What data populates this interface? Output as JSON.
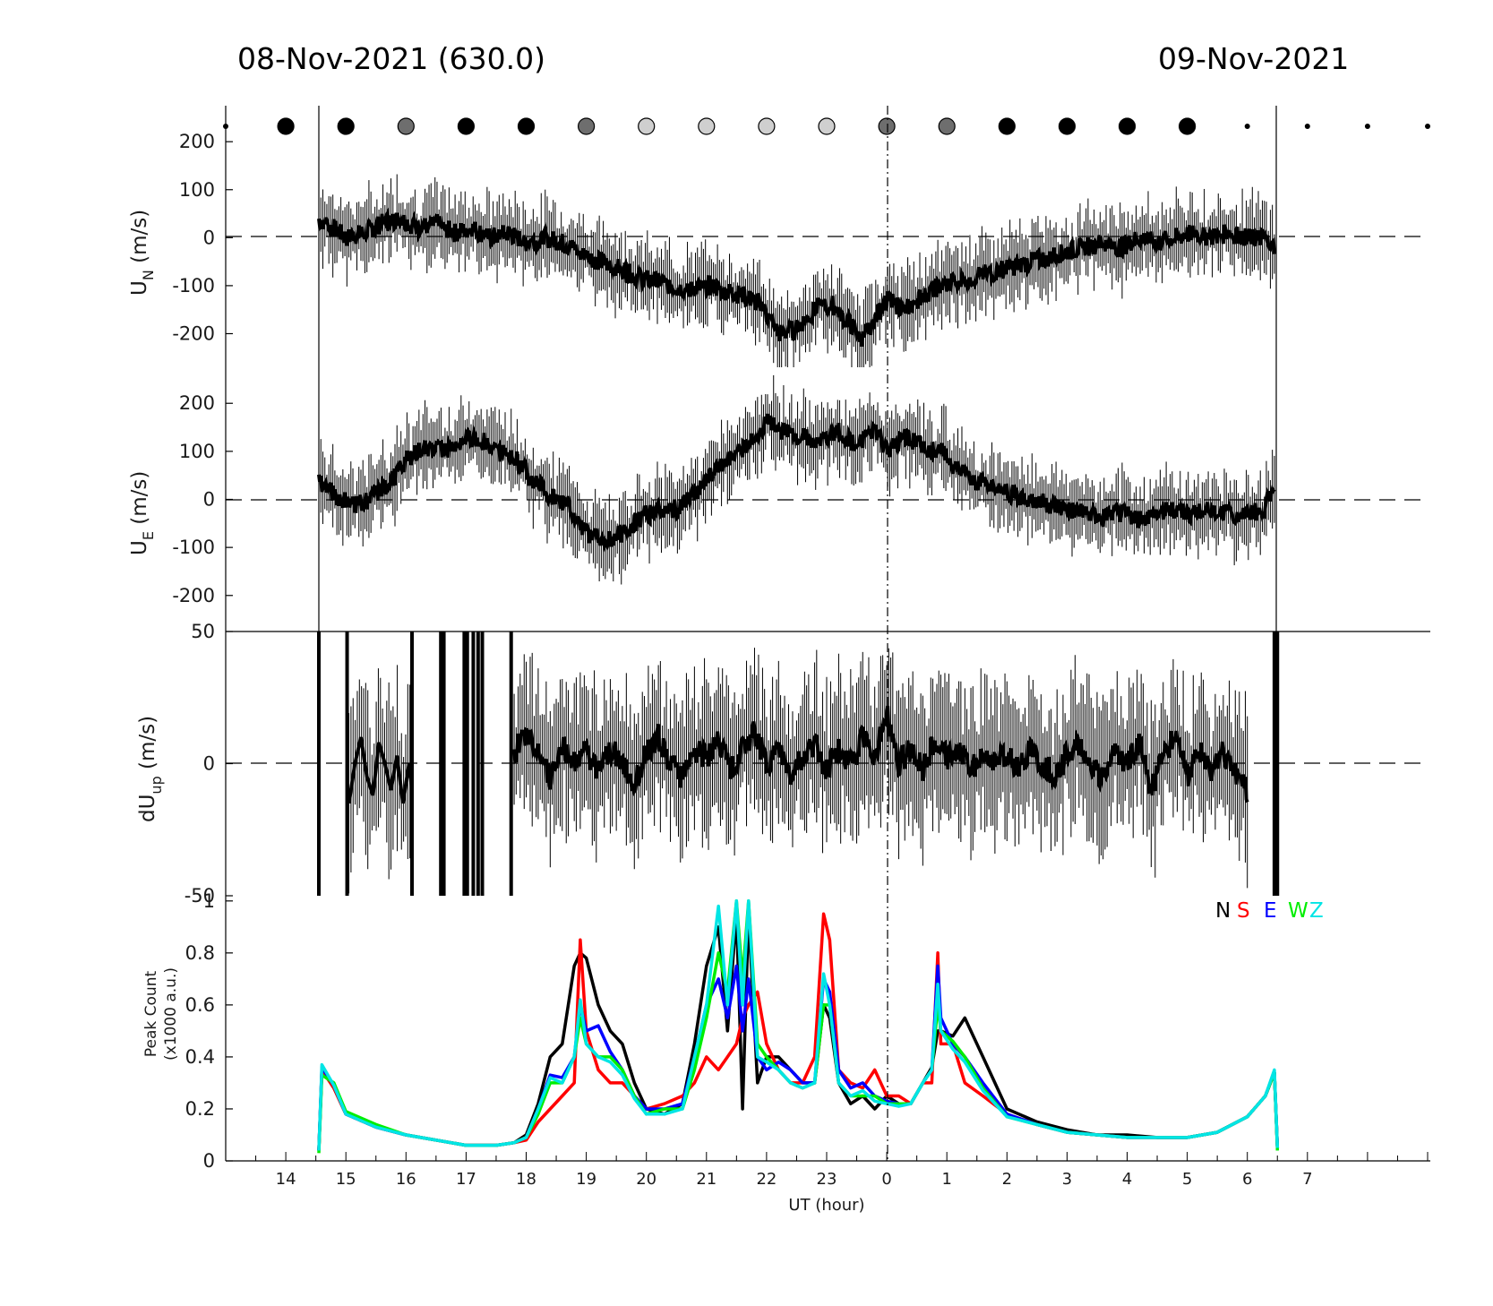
{
  "header": {
    "left_date": "08-Nov-2021 (630.0)",
    "right_date": "09-Nov-2021"
  },
  "moon_markers": {
    "x_hours": [
      13,
      14,
      15,
      16,
      17,
      18,
      19,
      20,
      21,
      22,
      23,
      24,
      25,
      26,
      27,
      28,
      29,
      30,
      31,
      32,
      33
    ],
    "shades": [
      "dot",
      "black",
      "black",
      "gray",
      "black",
      "black",
      "gray",
      "light",
      "light",
      "light",
      "light",
      "gray",
      "gray",
      "black",
      "black",
      "black",
      "black",
      "dot",
      "dot",
      "dot",
      "dot"
    ],
    "colors": {
      "black": "#000000",
      "gray": "#6e6e6e",
      "light": "#cfcfcf"
    }
  },
  "chart_data": [
    {
      "id": "un",
      "type": "line",
      "ylabel_main": "U",
      "ylabel_sub": "N",
      "ylabel_unit": " (m/s)",
      "ylim": [
        -270,
        275
      ],
      "yticks": [
        "200",
        "100",
        "0",
        "-100",
        "-200"
      ],
      "ytick_values": [
        200,
        100,
        0,
        -100,
        -200
      ],
      "xlim": [
        13,
        33
      ],
      "series_x": [
        14.55,
        14.8,
        15.0,
        15.3,
        15.6,
        15.9,
        16.2,
        16.5,
        16.8,
        17.1,
        17.4,
        17.7,
        18.0,
        18.3,
        18.6,
        18.9,
        19.2,
        19.5,
        19.8,
        20.1,
        20.4,
        20.7,
        21.0,
        21.3,
        21.6,
        21.9,
        22.2,
        22.5,
        22.8,
        23.1,
        23.4,
        23.6,
        23.8,
        24.0,
        24.3,
        24.6,
        24.9,
        25.2,
        25.5,
        25.8,
        26.1,
        26.4,
        26.7,
        27.0,
        27.3,
        27.6,
        27.9,
        28.2,
        28.5,
        28.8,
        29.1,
        29.4,
        29.7,
        30.0,
        30.3,
        30.45
      ],
      "series_y": [
        40,
        20,
        0,
        10,
        30,
        40,
        20,
        30,
        10,
        20,
        0,
        10,
        -10,
        0,
        -10,
        -30,
        -50,
        -60,
        -80,
        -90,
        -100,
        -110,
        -100,
        -110,
        -120,
        -140,
        -200,
        -190,
        -150,
        -140,
        -180,
        -210,
        -170,
        -130,
        -150,
        -120,
        -100,
        -90,
        -80,
        -70,
        -60,
        -50,
        -40,
        -30,
        -20,
        -10,
        -20,
        0,
        -10,
        0,
        10,
        0,
        10,
        0,
        0,
        -20
      ]
    },
    {
      "id": "ue",
      "type": "line",
      "ylabel_main": "U",
      "ylabel_sub": "E",
      "ylabel_unit": " (m/s)",
      "ylim": [
        -275,
        275
      ],
      "yticks": [
        "200",
        "100",
        "0",
        "-100",
        "-200"
      ],
      "ytick_values": [
        200,
        100,
        0,
        -100,
        -200
      ],
      "xlim": [
        13,
        33
      ],
      "series_x": [
        14.55,
        14.8,
        15.1,
        15.4,
        15.7,
        16.0,
        16.3,
        16.6,
        16.9,
        17.2,
        17.5,
        17.8,
        18.1,
        18.4,
        18.7,
        19.0,
        19.3,
        19.6,
        19.9,
        20.2,
        20.5,
        20.8,
        21.1,
        21.4,
        21.7,
        22.0,
        22.3,
        22.6,
        22.9,
        23.2,
        23.5,
        23.8,
        24.0,
        24.3,
        24.6,
        24.9,
        25.2,
        25.5,
        25.8,
        26.1,
        26.4,
        26.7,
        27.0,
        27.3,
        27.6,
        27.9,
        28.2,
        28.5,
        28.8,
        29.1,
        29.4,
        29.7,
        30.0,
        30.3,
        30.45
      ],
      "series_y": [
        40,
        10,
        -10,
        0,
        30,
        80,
        110,
        100,
        120,
        130,
        100,
        90,
        40,
        10,
        -10,
        -70,
        -90,
        -70,
        -40,
        -20,
        -20,
        10,
        50,
        90,
        110,
        160,
        140,
        130,
        120,
        140,
        110,
        150,
        100,
        130,
        110,
        100,
        60,
        40,
        20,
        10,
        0,
        -10,
        -20,
        -30,
        -40,
        -30,
        -40,
        -30,
        -20,
        -30,
        -20,
        -30,
        -30,
        -20,
        40
      ]
    },
    {
      "id": "dup",
      "type": "line",
      "ylabel_main": "dU",
      "ylabel_sub": "up",
      "ylabel_unit": " (m/s)",
      "ylim": [
        -50,
        50
      ],
      "yticks": [
        "50",
        "0",
        "-50"
      ],
      "ytick_values": [
        50,
        0,
        -50
      ],
      "xlim": [
        13,
        33
      ],
      "series_x": [
        17.8,
        18.0,
        18.2,
        18.4,
        18.6,
        18.8,
        19.0,
        19.2,
        19.4,
        19.6,
        19.8,
        20.0,
        20.2,
        20.4,
        20.6,
        20.8,
        21.0,
        21.2,
        21.4,
        21.6,
        21.8,
        22.0,
        22.2,
        22.4,
        22.6,
        22.8,
        23.0,
        23.2,
        23.4,
        23.6,
        23.8,
        24.0,
        24.2,
        24.4,
        24.6,
        24.8,
        25.0,
        25.2,
        25.4,
        25.6,
        25.8,
        26.0,
        26.2,
        26.4,
        26.6,
        26.8,
        27.0,
        27.2,
        27.4,
        27.6,
        27.8,
        28.0,
        28.2,
        28.4,
        28.6,
        28.8,
        29.0,
        29.2,
        29.4,
        29.6,
        29.8,
        30.0
      ],
      "series_y": [
        5,
        10,
        3,
        -5,
        8,
        0,
        5,
        -3,
        6,
        0,
        -8,
        4,
        10,
        0,
        -5,
        6,
        2,
        10,
        -3,
        5,
        12,
        0,
        6,
        -4,
        3,
        8,
        -2,
        5,
        0,
        10,
        3,
        20,
        0,
        6,
        -3,
        8,
        2,
        5,
        -2,
        4,
        0,
        3,
        -1,
        5,
        0,
        -4,
        3,
        8,
        0,
        -6,
        5,
        0,
        8,
        -10,
        3,
        10,
        -5,
        4,
        -2,
        5,
        -3,
        -10
      ],
      "segments_x": [
        [
          15.05,
          15.15,
          15.25,
          15.35,
          15.45,
          15.55,
          15.65,
          15.75,
          15.85,
          15.95,
          16.05,
          16.1
        ],
        [
          14.55,
          14.56
        ]
      ],
      "segments_y": [
        [
          -15,
          0,
          10,
          -5,
          -12,
          8,
          0,
          -10,
          3,
          -15,
          0,
          -10
        ],
        [
          0,
          0
        ]
      ]
    },
    {
      "id": "peak",
      "type": "line",
      "ylabel_line1": "Peak Count",
      "ylabel_line2": "(x1000 a.u.)",
      "ylim": [
        0,
        1.02
      ],
      "yticks": [
        "1",
        "0.8",
        "0.6",
        "0.4",
        "0.2",
        "0"
      ],
      "ytick_values": [
        1,
        0.8,
        0.6,
        0.4,
        0.2,
        0
      ],
      "xlim": [
        13,
        33
      ],
      "xlabel": "UT (hour)",
      "xticks": [
        "14",
        "15",
        "16",
        "17",
        "18",
        "19",
        "20",
        "21",
        "22",
        "23",
        "0",
        "1",
        "2",
        "3",
        "4",
        "5",
        "6",
        "7"
      ],
      "xtick_values": [
        14,
        15,
        16,
        17,
        18,
        19,
        20,
        21,
        22,
        23,
        24,
        25,
        26,
        27,
        28,
        29,
        30,
        31
      ],
      "legend": [
        "N",
        "S",
        "E",
        "W",
        "Z"
      ],
      "legend_colors": [
        "#000000",
        "#ff0000",
        "#0000ff",
        "#00ee00",
        "#00e5e5"
      ],
      "x": [
        14.55,
        14.6,
        14.8,
        15.0,
        15.5,
        16.0,
        16.5,
        17.0,
        17.5,
        17.8,
        18.0,
        18.2,
        18.4,
        18.6,
        18.8,
        18.9,
        19.0,
        19.2,
        19.4,
        19.6,
        19.8,
        20.0,
        20.3,
        20.6,
        20.8,
        21.0,
        21.2,
        21.35,
        21.5,
        21.6,
        21.7,
        21.85,
        22.0,
        22.2,
        22.4,
        22.6,
        22.8,
        22.95,
        23.05,
        23.2,
        23.4,
        23.6,
        23.8,
        24.0,
        24.2,
        24.4,
        24.6,
        24.75,
        24.85,
        24.9,
        25.1,
        25.3,
        25.6,
        26.0,
        26.5,
        27.0,
        27.5,
        28.0,
        28.5,
        29.0,
        29.5,
        30.0,
        30.3,
        30.45,
        30.5
      ],
      "series": [
        {
          "name": "N",
          "color": "#000000",
          "values": [
            0.04,
            0.35,
            0.28,
            0.18,
            0.13,
            0.1,
            0.08,
            0.06,
            0.06,
            0.07,
            0.1,
            0.22,
            0.4,
            0.45,
            0.75,
            0.8,
            0.78,
            0.6,
            0.5,
            0.45,
            0.3,
            0.2,
            0.18,
            0.22,
            0.45,
            0.75,
            0.9,
            0.5,
            0.95,
            0.2,
            0.95,
            0.3,
            0.4,
            0.4,
            0.35,
            0.3,
            0.3,
            0.6,
            0.55,
            0.3,
            0.22,
            0.25,
            0.2,
            0.25,
            0.22,
            0.22,
            0.3,
            0.36,
            0.5,
            0.5,
            0.48,
            0.55,
            0.4,
            0.2,
            0.15,
            0.12,
            0.1,
            0.1,
            0.09,
            0.09,
            0.11,
            0.17,
            0.25,
            0.34,
            0.05
          ]
        },
        {
          "name": "S",
          "color": "#ff0000",
          "values": [
            0.04,
            0.35,
            0.28,
            0.18,
            0.13,
            0.1,
            0.08,
            0.06,
            0.06,
            0.07,
            0.08,
            0.15,
            0.2,
            0.25,
            0.3,
            0.85,
            0.5,
            0.35,
            0.3,
            0.3,
            0.25,
            0.2,
            0.22,
            0.25,
            0.3,
            0.4,
            0.35,
            0.4,
            0.45,
            0.55,
            0.6,
            0.65,
            0.45,
            0.35,
            0.3,
            0.3,
            0.4,
            0.95,
            0.85,
            0.35,
            0.3,
            0.28,
            0.35,
            0.25,
            0.25,
            0.22,
            0.3,
            0.3,
            0.8,
            0.45,
            0.45,
            0.3,
            0.25,
            0.18,
            0.14,
            0.11,
            0.1,
            0.09,
            0.09,
            0.09,
            0.11,
            0.17,
            0.25,
            0.34,
            0.05
          ]
        },
        {
          "name": "E",
          "color": "#0000ff",
          "values": [
            0.04,
            0.36,
            0.29,
            0.18,
            0.13,
            0.1,
            0.08,
            0.06,
            0.06,
            0.07,
            0.09,
            0.2,
            0.33,
            0.32,
            0.4,
            0.6,
            0.5,
            0.52,
            0.42,
            0.35,
            0.25,
            0.2,
            0.2,
            0.22,
            0.4,
            0.6,
            0.7,
            0.55,
            0.75,
            0.5,
            0.7,
            0.4,
            0.35,
            0.38,
            0.35,
            0.3,
            0.3,
            0.7,
            0.65,
            0.35,
            0.28,
            0.3,
            0.25,
            0.23,
            0.22,
            0.22,
            0.3,
            0.35,
            0.75,
            0.55,
            0.45,
            0.4,
            0.3,
            0.18,
            0.14,
            0.11,
            0.1,
            0.09,
            0.09,
            0.09,
            0.11,
            0.17,
            0.25,
            0.34,
            0.05
          ]
        },
        {
          "name": "W",
          "color": "#00ee00",
          "values": [
            0.03,
            0.33,
            0.3,
            0.19,
            0.14,
            0.1,
            0.08,
            0.06,
            0.06,
            0.07,
            0.09,
            0.18,
            0.3,
            0.3,
            0.4,
            0.55,
            0.45,
            0.4,
            0.4,
            0.35,
            0.25,
            0.18,
            0.2,
            0.2,
            0.35,
            0.55,
            0.8,
            0.65,
            1.0,
            0.7,
            1.0,
            0.45,
            0.4,
            0.35,
            0.3,
            0.28,
            0.3,
            0.6,
            0.6,
            0.3,
            0.25,
            0.25,
            0.25,
            0.22,
            0.22,
            0.22,
            0.3,
            0.35,
            0.6,
            0.5,
            0.46,
            0.4,
            0.28,
            0.17,
            0.14,
            0.11,
            0.1,
            0.09,
            0.09,
            0.09,
            0.11,
            0.17,
            0.25,
            0.34,
            0.04
          ]
        },
        {
          "name": "Z",
          "color": "#00e5e5",
          "values": [
            0.04,
            0.37,
            0.29,
            0.18,
            0.13,
            0.1,
            0.08,
            0.06,
            0.06,
            0.07,
            0.09,
            0.2,
            0.32,
            0.3,
            0.4,
            0.62,
            0.45,
            0.4,
            0.38,
            0.33,
            0.24,
            0.18,
            0.18,
            0.2,
            0.4,
            0.6,
            0.98,
            0.6,
            1.0,
            0.6,
            1.0,
            0.4,
            0.38,
            0.35,
            0.3,
            0.28,
            0.3,
            0.72,
            0.6,
            0.3,
            0.25,
            0.27,
            0.23,
            0.22,
            0.21,
            0.22,
            0.3,
            0.35,
            0.68,
            0.5,
            0.43,
            0.38,
            0.27,
            0.17,
            0.14,
            0.11,
            0.1,
            0.09,
            0.09,
            0.09,
            0.11,
            0.17,
            0.25,
            0.35,
            0.05
          ]
        }
      ]
    }
  ]
}
